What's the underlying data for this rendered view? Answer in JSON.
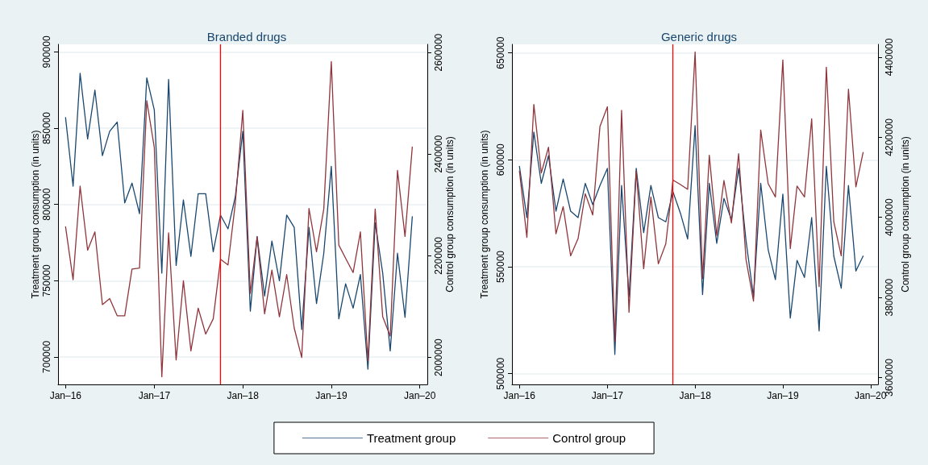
{
  "chart_data": [
    {
      "type": "line",
      "title": "Branded drugs",
      "ylabel": "Treatment group consumption (in units)",
      "y2label": "Control group consumption (in units)",
      "x": [
        "2016-01",
        "2016-02",
        "2016-03",
        "2016-04",
        "2016-05",
        "2016-06",
        "2016-07",
        "2016-08",
        "2016-09",
        "2016-10",
        "2016-11",
        "2016-12",
        "2017-01",
        "2017-02",
        "2017-03",
        "2017-04",
        "2017-05",
        "2017-06",
        "2017-07",
        "2017-08",
        "2017-09",
        "2017-10",
        "2017-11",
        "2017-12",
        "2018-01",
        "2018-02",
        "2018-03",
        "2018-04",
        "2018-05",
        "2018-06",
        "2018-07",
        "2018-08",
        "2018-09",
        "2018-10",
        "2018-11",
        "2018-12",
        "2019-01",
        "2019-02",
        "2019-03",
        "2019-04",
        "2019-05",
        "2019-06",
        "2019-07",
        "2019-08",
        "2019-09",
        "2019-10",
        "2019-11",
        "2019-12"
      ],
      "series": [
        {
          "name": "Treatment group",
          "color": "#1a476f",
          "values": [
            857000,
            812000,
            886000,
            843000,
            875000,
            832000,
            848000,
            854000,
            801000,
            814000,
            794000,
            883000,
            862000,
            755000,
            882000,
            760000,
            803000,
            766000,
            807000,
            807000,
            769000,
            793000,
            784000,
            805000,
            848000,
            730000,
            779000,
            740000,
            776000,
            750000,
            793000,
            785000,
            718000,
            785000,
            735000,
            768000,
            825000,
            725000,
            748000,
            732000,
            754000,
            692000,
            788000,
            755000,
            704000,
            768000,
            726000,
            792000
          ]
        },
        {
          "name": "Control group",
          "color": "#90353b",
          "axis": "y2",
          "values": [
            2257000,
            2153000,
            2337000,
            2211000,
            2247000,
            2104000,
            2116000,
            2082000,
            2082000,
            2174000,
            2176000,
            2505000,
            2413000,
            1962000,
            2245000,
            1995000,
            2151000,
            2013000,
            2097000,
            2046000,
            2076000,
            2193000,
            2182000,
            2303000,
            2486000,
            2126000,
            2237000,
            2086000,
            2172000,
            2080000,
            2163000,
            2058000,
            2000000,
            2293000,
            2208000,
            2292000,
            2582000,
            2221000,
            2195000,
            2167000,
            2247000,
            1993000,
            2292000,
            2080000,
            2042000,
            2368000,
            2238000,
            2414000
          ]
        }
      ],
      "xlim": [
        "2015-12",
        "2020-02"
      ],
      "xticks": [
        {
          "value": "2016-01",
          "label": "Jan–16"
        },
        {
          "value": "2017-01",
          "label": "Jan–17"
        },
        {
          "value": "2018-01",
          "label": "Jan–18"
        },
        {
          "value": "2019-01",
          "label": "Jan–19"
        },
        {
          "value": "2020-01",
          "label": "Jan–20"
        }
      ],
      "ylim": [
        682000,
        905000
      ],
      "yticks": [
        700000,
        750000,
        800000,
        850000,
        900000
      ],
      "y2lim": [
        1947000,
        2616000
      ],
      "y2ticks": [
        2000000,
        2200000,
        2400000,
        2600000
      ],
      "ref_lines": [
        {
          "axis": "x",
          "value": "2017-10",
          "color": "#ff0000"
        }
      ],
      "grid": "y",
      "legend": "bottom",
      "marker": "none",
      "line_style": "solid"
    },
    {
      "type": "line",
      "title": "Generic drugs",
      "ylabel": "Treatment group consumption (in units)",
      "y2label": "Control group consumption (in units)",
      "x": [
        "2016-01",
        "2016-02",
        "2016-03",
        "2016-04",
        "2016-05",
        "2016-06",
        "2016-07",
        "2016-08",
        "2016-09",
        "2016-10",
        "2016-11",
        "2016-12",
        "2017-01",
        "2017-02",
        "2017-03",
        "2017-04",
        "2017-05",
        "2017-06",
        "2017-07",
        "2017-08",
        "2017-09",
        "2017-10",
        "2017-11",
        "2017-12",
        "2018-01",
        "2018-02",
        "2018-03",
        "2018-04",
        "2018-05",
        "2018-06",
        "2018-07",
        "2018-08",
        "2018-09",
        "2018-10",
        "2018-11",
        "2018-12",
        "2019-01",
        "2019-02",
        "2019-03",
        "2019-04",
        "2019-05",
        "2019-06",
        "2019-07",
        "2019-08",
        "2019-09",
        "2019-10",
        "2019-11",
        "2019-12"
      ],
      "series": [
        {
          "color": "#1a476f",
          "values": [
            597000,
            573000,
            613000,
            589000,
            602000,
            576000,
            591000,
            576000,
            573000,
            589000,
            579000,
            588000,
            596000,
            509000,
            588000,
            536000,
            596000,
            566000,
            588000,
            573000,
            571000,
            585000,
            575000,
            563000,
            616000,
            537000,
            589000,
            561000,
            582000,
            572000,
            596000,
            562000,
            536000,
            589000,
            558000,
            544000,
            584000,
            526000,
            553000,
            545000,
            573000,
            520000,
            597000,
            555000,
            540000,
            588000,
            548000,
            555000
          ]
        },
        {
          "color": "#90353b",
          "axis": "y2",
          "values": [
            4116000,
            3950000,
            4282000,
            4111000,
            4175000,
            3959000,
            4027000,
            3904000,
            3947000,
            4059000,
            4006000,
            4227000,
            4276000,
            3690000,
            4267000,
            3763000,
            4116000,
            3872000,
            4051000,
            3884000,
            3934000,
            4093000,
            4082000,
            4070000,
            4413000,
            3847000,
            4155000,
            3955000,
            4092000,
            3986000,
            4159000,
            3894000,
            3791000,
            4218000,
            4084000,
            4051000,
            4393000,
            3922000,
            4078000,
            4051000,
            4246000,
            3827000,
            4375000,
            3989000,
            3904000,
            4320000,
            4076000,
            4162000
          ]
        }
      ],
      "xlim": [
        "2015-12",
        "2020-02"
      ],
      "xticks": [
        {
          "value": "2016-01",
          "label": "Jan–16"
        },
        {
          "value": "2017-01",
          "label": "Jan–17"
        },
        {
          "value": "2018-01",
          "label": "Jan–18"
        },
        {
          "value": "2019-01",
          "label": "Jan–19"
        },
        {
          "value": "2020-01",
          "label": "Jan–20"
        }
      ],
      "ylim": [
        495000,
        654000
      ],
      "yticks": [
        500000,
        550000,
        600000,
        650000
      ],
      "y2lim": [
        3583000,
        4432000
      ],
      "y2ticks": [
        3600000,
        3800000,
        4000000,
        4200000,
        4400000
      ],
      "ref_lines": [
        {
          "axis": "x",
          "value": "2017-10",
          "color": "#ff0000"
        }
      ],
      "grid": "y",
      "legend": false,
      "marker": "none",
      "line_style": "solid"
    }
  ]
}
